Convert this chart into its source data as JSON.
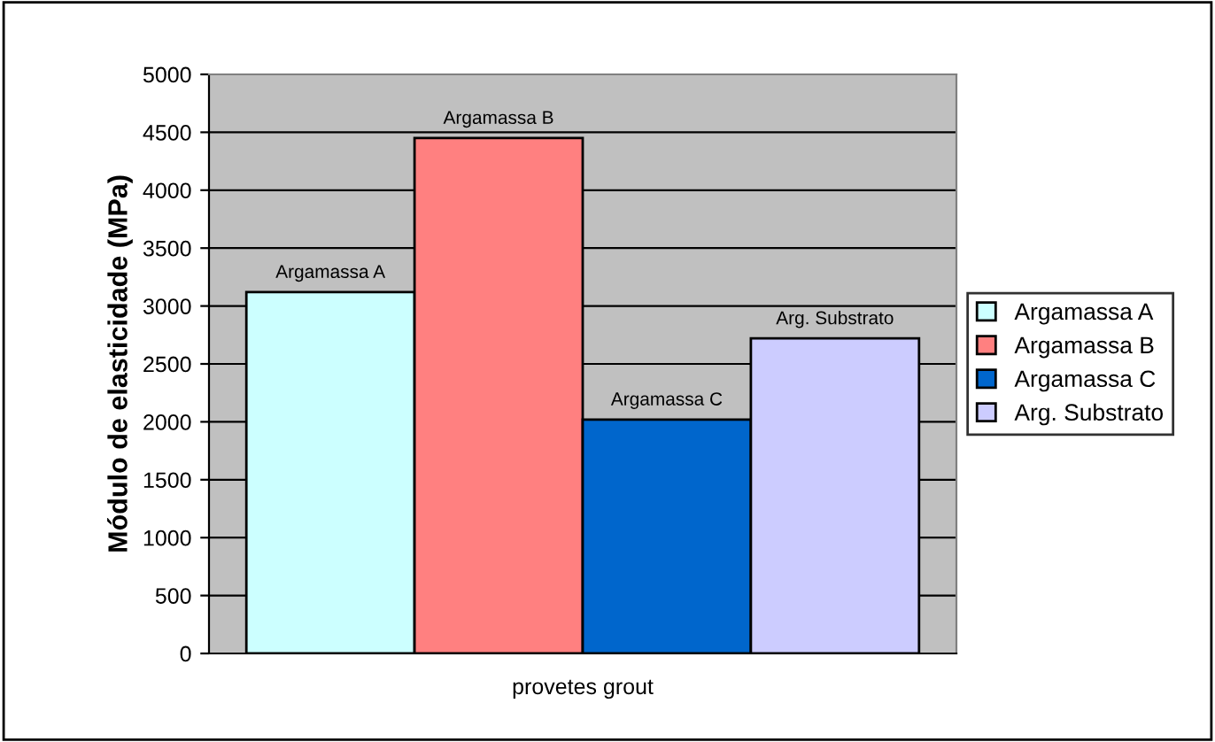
{
  "chart_data": {
    "type": "bar",
    "ylabel": "Módulo de elasticidade (MPa)",
    "categories": [
      "provetes grout"
    ],
    "series": [
      {
        "name": "Argamassa A",
        "color": "#ccffff",
        "values": [
          3120
        ]
      },
      {
        "name": "Argamassa B",
        "color": "#ff8080",
        "values": [
          4450
        ]
      },
      {
        "name": "Argamassa C",
        "color": "#0066cc",
        "values": [
          2020
        ]
      },
      {
        "name": "Arg. Substrato",
        "color": "#ccccff",
        "values": [
          2720
        ]
      }
    ],
    "ylim": [
      0,
      5000
    ],
    "yticks": [
      0,
      500,
      1000,
      1500,
      2000,
      2500,
      3000,
      3500,
      4000,
      4500,
      5000
    ],
    "grid": "y",
    "legend": "right"
  }
}
